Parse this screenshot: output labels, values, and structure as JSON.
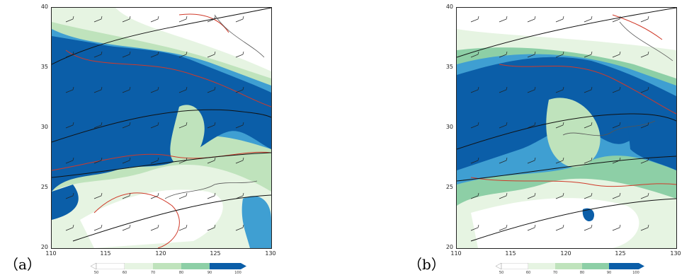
{
  "panels": [
    {
      "label": "（a）",
      "lat_ticks": [
        "40",
        "35",
        "30",
        "25",
        "20"
      ],
      "lon_ticks": [
        "110",
        "115",
        "120",
        "125",
        "130"
      ],
      "colorbar_ticks": [
        "50",
        "60",
        "70",
        "80",
        "90",
        "100"
      ]
    },
    {
      "label": "（b）",
      "lat_ticks": [
        "40",
        "35",
        "30",
        "25",
        "20"
      ],
      "lon_ticks": [
        "110",
        "115",
        "120",
        "125",
        "130"
      ],
      "colorbar_ticks": [
        "50",
        "60",
        "70",
        "80",
        "90",
        "100"
      ]
    }
  ],
  "colors": {
    "fill_50": "#ffffff",
    "fill_60": "#e6f4e2",
    "fill_70": "#bfe3bc",
    "fill_80": "#8dcfa6",
    "fill_90": "#3f9fd2",
    "fill_100": "#0b5ea8",
    "contour_red": "#d03a2a",
    "contour_black": "#111111",
    "coastline": "#555555"
  }
}
